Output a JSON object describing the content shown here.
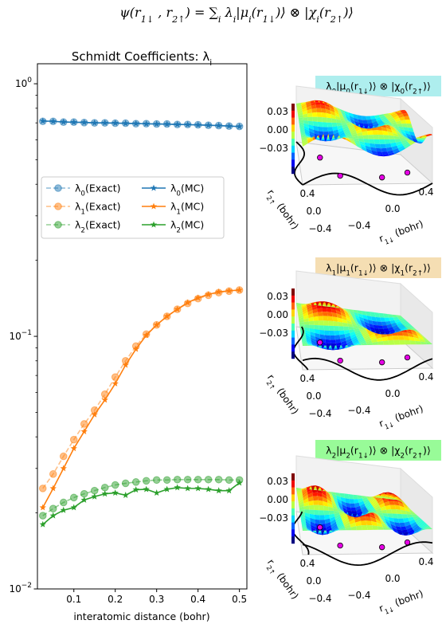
{
  "figure": {
    "suptitle": "ψ(r1↓ , r2↑) = ∑i λi|μi(r1↓)⟩ ⊗ |χi(r2↑)⟩"
  },
  "chart_data": [
    {
      "type": "line",
      "title": "Schmidt Coefficients:   λi",
      "xlabel": "interatomic distance (bohr)",
      "ylabel": "",
      "yscale": "log",
      "xlim": [
        0.012,
        0.518
      ],
      "ylim": [
        0.01,
        1.2
      ],
      "xticks": [
        0.1,
        0.2,
        0.3,
        0.4,
        0.5
      ],
      "xtick_labels": [
        "0.1",
        "0.2",
        "0.3",
        "0.4",
        "0.5"
      ],
      "yticks": [
        0.01,
        0.1,
        1.0
      ],
      "ytick_labels": [
        "10⁻²",
        "10⁻¹",
        "10⁰"
      ],
      "grid": false,
      "legend_position": "center-left",
      "x": [
        0.025,
        0.05,
        0.075,
        0.1,
        0.125,
        0.15,
        0.175,
        0.2,
        0.225,
        0.25,
        0.275,
        0.3,
        0.325,
        0.35,
        0.375,
        0.4,
        0.425,
        0.45,
        0.475,
        0.5
      ],
      "series": [
        {
          "name": "λ0(Exact)",
          "style": "dashed-circle",
          "color": "#1f77b4",
          "values": [
            0.71,
            0.71,
            0.705,
            0.705,
            0.702,
            0.7,
            0.7,
            0.698,
            0.698,
            0.695,
            0.695,
            0.693,
            0.693,
            0.69,
            0.69,
            0.688,
            0.685,
            0.683,
            0.68,
            0.678
          ]
        },
        {
          "name": "λ1(Exact)",
          "style": "dashed-circle",
          "color": "#ff7f0e",
          "values": [
            0.025,
            0.0285,
            0.0335,
            0.039,
            0.045,
            0.051,
            0.059,
            0.069,
            0.08,
            0.0915,
            0.102,
            0.111,
            0.12,
            0.128,
            0.135,
            0.141,
            0.1455,
            0.149,
            0.151,
            0.1525
          ]
        },
        {
          "name": "λ2(Exact)",
          "style": "dashed-circle",
          "color": "#2ca02c",
          "values": [
            0.0195,
            0.0208,
            0.022,
            0.023,
            0.0238,
            0.0245,
            0.0252,
            0.0258,
            0.0262,
            0.0265,
            0.0268,
            0.027,
            0.027,
            0.0271,
            0.0271,
            0.0271,
            0.0271,
            0.0271,
            0.027,
            0.027
          ]
        },
        {
          "name": "λ0(MC)",
          "style": "solid-star",
          "color": "#1f77b4",
          "values": [
            0.712,
            0.71,
            0.706,
            0.704,
            0.703,
            0.7,
            0.7,
            0.699,
            0.697,
            0.696,
            0.694,
            0.693,
            0.692,
            0.69,
            0.689,
            0.687,
            0.685,
            0.683,
            0.68,
            0.677
          ]
        },
        {
          "name": "λ1(MC)",
          "style": "solid-star",
          "color": "#ff7f0e",
          "values": [
            0.021,
            0.025,
            0.03,
            0.036,
            0.042,
            0.049,
            0.056,
            0.065,
            0.077,
            0.089,
            0.101,
            0.111,
            0.12,
            0.128,
            0.136,
            0.142,
            0.1465,
            0.15,
            0.1515,
            0.1525
          ]
        },
        {
          "name": "λ2(MC)",
          "style": "solid-star",
          "color": "#2ca02c",
          "values": [
            0.018,
            0.0195,
            0.0205,
            0.021,
            0.0225,
            0.0232,
            0.0238,
            0.024,
            0.0235,
            0.0247,
            0.0248,
            0.024,
            0.0248,
            0.0252,
            0.025,
            0.025,
            0.0248,
            0.0245,
            0.0245,
            0.0263
          ]
        }
      ]
    },
    {
      "type": "surface",
      "title": "λ0|μ0(r1↓)⟩ ⊗ |χ0(r2↑)⟩",
      "title_bg": "#aeeeee",
      "xlabel": "r1↓ (bohr)",
      "ylabel": "r2↑ (bohr)",
      "zticks": [
        "0.03",
        "0.00",
        "−0.03"
      ],
      "xticks": [
        "−0.4",
        "0.0",
        "0.4"
      ],
      "yticks": [
        "0.4",
        "0.0",
        "−0.4"
      ],
      "index": 0
    },
    {
      "type": "surface",
      "title": "λ1|μ1(r1↓)⟩ ⊗ |χ1(r2↑)⟩",
      "title_bg": "#f5deb3",
      "xlabel": "r1↓ (bohr)",
      "ylabel": "r2↑ (bohr)",
      "zticks": [
        "0.03",
        "0.00",
        "−0.03"
      ],
      "xticks": [
        "−0.4",
        "0.0",
        "0.4"
      ],
      "yticks": [
        "0.4",
        "0.0",
        "−0.4"
      ],
      "index": 1
    },
    {
      "type": "surface",
      "title": "λ2|μ2(r1↓)⟩ ⊗ |χ2(r2↑)⟩",
      "title_bg": "#98fb98",
      "xlabel": "r1↓ (bohr)",
      "ylabel": "r2↑ (bohr)",
      "zticks": [
        "0.03",
        "0.00",
        "−0.03"
      ],
      "xticks": [
        "−0.4",
        "0.0",
        "0.4"
      ],
      "yticks": [
        "0.4",
        "0.0",
        "−0.4"
      ],
      "index": 2
    }
  ]
}
